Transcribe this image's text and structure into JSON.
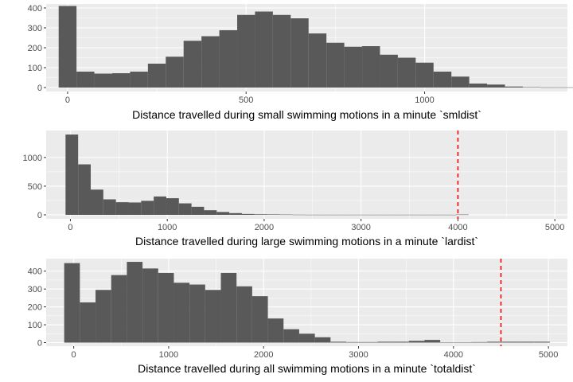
{
  "chart_data": [
    {
      "type": "bar",
      "subtype": "histogram",
      "xlabel": "Distance travelled during small swimming motions in a minute `smldist`",
      "ylabel": "",
      "bin_start": -25,
      "bin_width": 50,
      "values": [
        410,
        80,
        70,
        72,
        80,
        120,
        155,
        235,
        258,
        288,
        365,
        382,
        365,
        348,
        272,
        225,
        205,
        208,
        165,
        150,
        125,
        80,
        55,
        20,
        15,
        5,
        2,
        1,
        1,
        1,
        1,
        1
      ],
      "xlim": [
        -60,
        1400
      ],
      "ylim": [
        -20,
        420
      ],
      "xticks": [
        0,
        500,
        1000
      ],
      "yticks": [
        0,
        100,
        200,
        300,
        400
      ],
      "grid": true,
      "colors": {
        "bar": "#595959",
        "panel": "#ebebeb",
        "grid": "#ffffff"
      }
    },
    {
      "type": "bar",
      "subtype": "histogram",
      "xlabel": "Distance travelled during large swimming motions in a minute `lardist`",
      "ylabel": "",
      "bin_start": -50,
      "bin_width": 130,
      "values": [
        1400,
        880,
        440,
        270,
        220,
        215,
        245,
        320,
        290,
        200,
        140,
        80,
        50,
        30,
        15,
        10,
        8,
        5,
        3,
        2,
        2,
        2,
        2,
        2,
        2,
        2,
        2,
        2,
        2,
        2,
        2,
        5
      ],
      "xlim": [
        -250,
        5130
      ],
      "ylim": [
        -70,
        1470
      ],
      "xticks": [
        0,
        1000,
        2000,
        3000,
        4000,
        5000
      ],
      "yticks": [
        0,
        500,
        1000
      ],
      "grid": true,
      "reference_line": {
        "x": 4000,
        "color": "#ff0000",
        "style": "dashed"
      },
      "colors": {
        "bar": "#595959",
        "panel": "#ebebeb",
        "grid": "#ffffff"
      }
    },
    {
      "type": "bar",
      "subtype": "histogram",
      "xlabel": "Distance travelled during all swimming motions in a minute `totaldist`",
      "ylabel": "",
      "bin_start": -100,
      "bin_width": 165,
      "values": [
        445,
        225,
        295,
        378,
        452,
        415,
        390,
        335,
        325,
        295,
        390,
        315,
        260,
        135,
        75,
        50,
        30,
        5,
        3,
        3,
        5,
        5,
        10,
        15,
        2,
        2,
        3,
        5,
        5,
        5,
        5
      ],
      "xlim": [
        -290,
        5200
      ],
      "ylim": [
        -20,
        470
      ],
      "xticks": [
        0,
        1000,
        2000,
        3000,
        4000,
        5000
      ],
      "yticks": [
        0,
        100,
        200,
        300,
        400
      ],
      "grid": true,
      "reference_line": {
        "x": 4500,
        "color": "#ff0000",
        "style": "dashed"
      },
      "colors": {
        "bar": "#595959",
        "panel": "#ebebeb",
        "grid": "#ffffff"
      }
    }
  ]
}
